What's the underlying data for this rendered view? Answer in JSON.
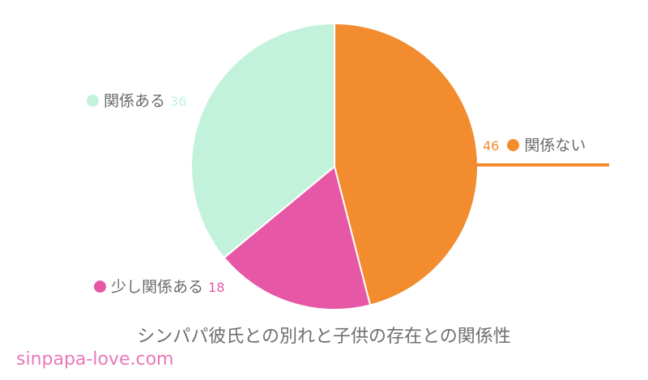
{
  "chart_data": {
    "type": "pie",
    "title": "シンパパ彼氏との別れと子供の存在との関係性",
    "categories": [
      "関係ない",
      "少し関係ある",
      "関係ある"
    ],
    "values": [
      46,
      18,
      36
    ],
    "colors": [
      "#f28c2e",
      "#e657a6",
      "#c3f2dc"
    ],
    "start_angle": "12 o'clock, clockwise",
    "legend_position": "outside labels with leader"
  },
  "labels": {
    "none": {
      "text": "関係ない",
      "value": "46",
      "color": "#f28c2e"
    },
    "little": {
      "text": "少し関係ある",
      "value": "18",
      "color": "#e657a6"
    },
    "some": {
      "text": "関係ある",
      "value": "36",
      "color": "#c3f2dc"
    }
  },
  "title": "シンパパ彼氏との別れと子供の存在との関係性",
  "watermark": "sinpapa-love.com"
}
